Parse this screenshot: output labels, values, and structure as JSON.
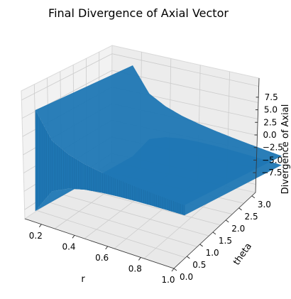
{
  "chart_data": {
    "type": "surface3d",
    "title": "Final Divergence of Axial Vector",
    "xlabel": "r",
    "ylabel": "theta",
    "zlabel": "Divergence of Axial",
    "x_ticks": [
      "0.2",
      "0.4",
      "0.6",
      "0.8",
      "1.0"
    ],
    "y_ticks": [
      "0.0",
      "0.5",
      "1.0",
      "1.5",
      "2.0",
      "2.5",
      "3.0"
    ],
    "z_ticks": [
      "7.5",
      "5.0",
      "2.5",
      "0.0",
      "−2.5",
      "−5.0",
      "−7.5"
    ],
    "xlim": [
      0.1,
      1.0
    ],
    "ylim": [
      0.0,
      3.14
    ],
    "zlim": [
      -9.0,
      9.0
    ],
    "surface_envelope": {
      "r": [
        0.1,
        0.2,
        0.3,
        0.4,
        0.5,
        0.6,
        0.7,
        0.8,
        0.9,
        1.0
      ],
      "amplitude": [
        8.0,
        4.0,
        2.7,
        2.0,
        1.6,
        1.33,
        1.14,
        1.0,
        0.89,
        0.8
      ]
    },
    "grid": true,
    "colors": {
      "surface": "#1f77b4",
      "pane": "#f2f2f2",
      "grid": "#cccccc"
    }
  }
}
